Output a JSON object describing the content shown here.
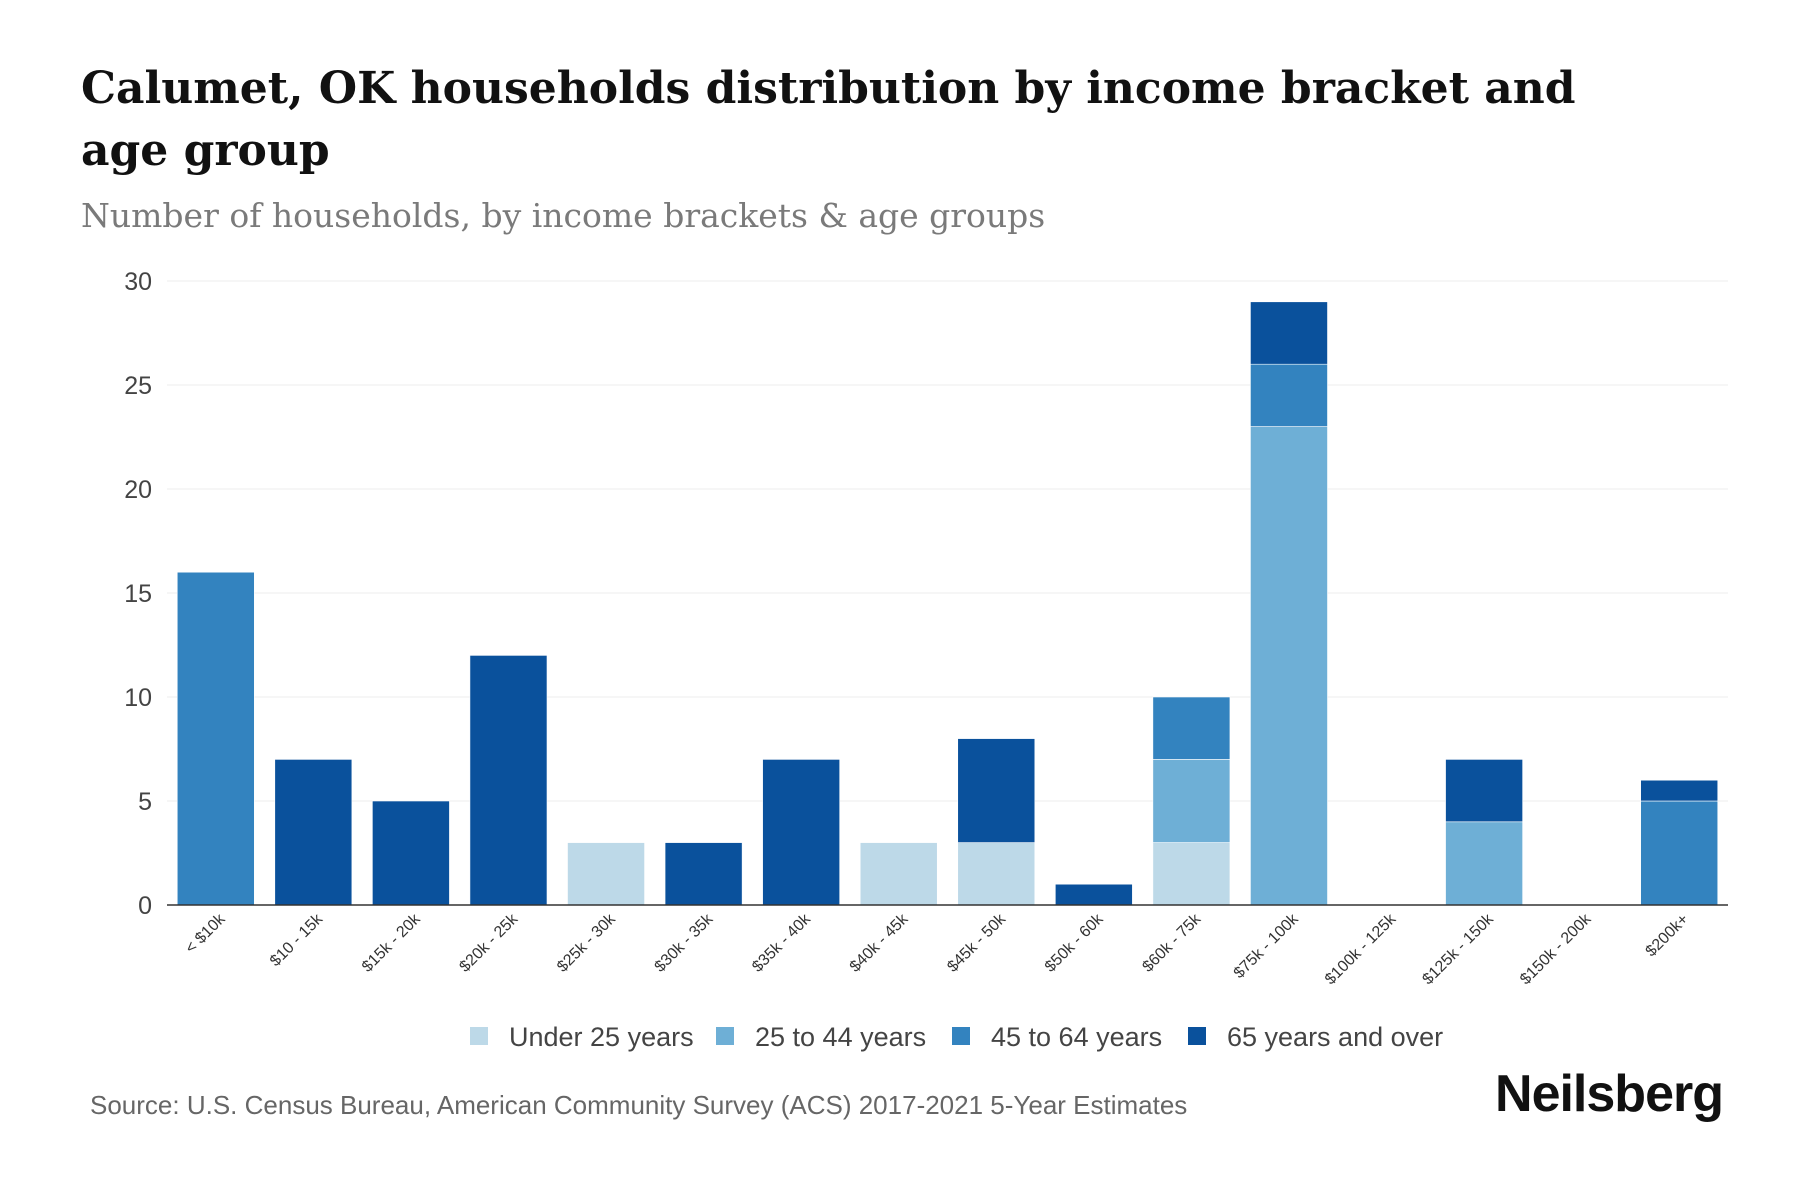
{
  "header": {
    "title": "Calumet, OK households distribution by income bracket and age group",
    "subtitle": "Number of households, by income brackets & age groups"
  },
  "footer": {
    "source": "Source: U.S. Census Bureau, American Community Survey (ACS) 2017-2021 5-Year Estimates",
    "brand": "Neilsberg"
  },
  "chart_data": {
    "type": "bar",
    "stacked": true,
    "title": "Calumet, OK households distribution by income bracket and age group",
    "subtitle": "Number of households, by income brackets & age groups",
    "xlabel": "",
    "ylabel": "",
    "ylim": [
      0,
      30
    ],
    "yticks": [
      0,
      5,
      10,
      15,
      20,
      25,
      30
    ],
    "grid": true,
    "legend_position": "bottom-center",
    "categories": [
      "< $10k",
      "$10 - 15k",
      "$15k - 20k",
      "$20k - 25k",
      "$25k - 30k",
      "$30k - 35k",
      "$35k - 40k",
      "$40k - 45k",
      "$45k - 50k",
      "$50k - 60k",
      "$60k - 75k",
      "$75k - 100k",
      "$100k - 125k",
      "$125k - 150k",
      "$150k - 200k",
      "$200k+"
    ],
    "series": [
      {
        "name": "Under 25 years",
        "color": "#bdd9e8",
        "values": [
          0,
          0,
          0,
          0,
          3,
          0,
          0,
          3,
          3,
          0,
          3,
          0,
          0,
          0,
          0,
          0
        ]
      },
      {
        "name": "25 to 44 years",
        "color": "#6eafd6",
        "values": [
          0,
          0,
          0,
          0,
          0,
          0,
          0,
          0,
          0,
          0,
          4,
          23,
          0,
          4,
          0,
          0
        ]
      },
      {
        "name": "45 to 64 years",
        "color": "#3383bf",
        "values": [
          16,
          0,
          0,
          0,
          0,
          0,
          0,
          0,
          0,
          0,
          3,
          3,
          0,
          0,
          0,
          5
        ]
      },
      {
        "name": "65 years and over",
        "color": "#0a519c",
        "values": [
          0,
          7,
          5,
          12,
          0,
          3,
          7,
          0,
          5,
          1,
          0,
          3,
          0,
          3,
          0,
          1
        ]
      }
    ]
  }
}
